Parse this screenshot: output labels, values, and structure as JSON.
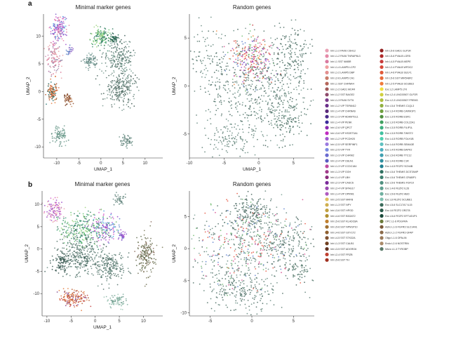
{
  "panels": [
    {
      "label": "a",
      "row": 0
    },
    {
      "label": "b",
      "row": 1
    }
  ],
  "chart_data": [
    {
      "type": "scatter",
      "panel": "a",
      "title": "Minimal marker genes",
      "xlabel": "UMAP_1",
      "ylabel": "UMAP_2",
      "xlim": [
        -13,
        14
      ],
      "ylim": [
        -12,
        14
      ],
      "xticks": [
        -10,
        -5,
        0,
        5,
        10
      ],
      "yticks": [
        -10,
        -5,
        0,
        5,
        10
      ],
      "clusters": [
        {
          "x": -9.5,
          "y": 11.5,
          "sx": 0.9,
          "sy": 1.3,
          "n": 150,
          "colors": [
            "#9b46c9",
            "#d35bc7",
            "#4aa3de",
            "#7b55c7",
            "#e27aa5"
          ]
        },
        {
          "x": -10.5,
          "y": 6,
          "sx": 0.7,
          "sy": 1.4,
          "n": 110,
          "colors": [
            "#e8a0a4",
            "#c98ab1",
            "#8c7a9e",
            "#d66a8c"
          ]
        },
        {
          "x": -7,
          "y": 7.5,
          "sx": 0.4,
          "sy": 0.4,
          "n": 30,
          "colors": [
            "#5c7fc4",
            "#a07ad0"
          ]
        },
        {
          "x": -11,
          "y": 0,
          "sx": 0.6,
          "sy": 0.9,
          "n": 110,
          "colors": [
            "#b0532a",
            "#d4683a",
            "#1f6f6b",
            "#e47b3d"
          ]
        },
        {
          "x": -7.5,
          "y": -1.5,
          "sx": 0.45,
          "sy": 0.6,
          "n": 50,
          "colors": [
            "#8c4a2a",
            "#6e3a1f",
            "#c9895a"
          ]
        },
        {
          "x": 0,
          "y": 10,
          "sx": 1.1,
          "sy": 0.9,
          "n": 140,
          "colors": [
            "#5fc26e",
            "#3e8f6f",
            "#9bd27c",
            "#2f7a5e"
          ]
        },
        {
          "x": -2.5,
          "y": 5.5,
          "sx": 0.8,
          "sy": 0.6,
          "n": 80,
          "colors": [
            "#6a8d88",
            "#5f7f7a",
            "#7aa29b"
          ]
        },
        {
          "x": 4,
          "y": 6,
          "sx": 1.7,
          "sy": 1.8,
          "n": 220,
          "colors": [
            "#5c7c72",
            "#6f9087",
            "#3f5f58",
            "#7fa79a"
          ]
        },
        {
          "x": 4.5,
          "y": 0.5,
          "sx": 1.8,
          "sy": 1.5,
          "n": 240,
          "colors": [
            "#546f67",
            "#6a8a80",
            "#3f5a52",
            "#7b9a90"
          ]
        },
        {
          "x": 3,
          "y": 9.5,
          "sx": 0.5,
          "sy": 0.5,
          "n": 40,
          "colors": [
            "#1f5a4a",
            "#27664f"
          ]
        },
        {
          "x": -9.5,
          "y": -8,
          "sx": 0.8,
          "sy": 0.8,
          "n": 90,
          "colors": [
            "#6d9a8c",
            "#7fae9f",
            "#5a8a7c"
          ]
        },
        {
          "x": 6,
          "y": -9,
          "sx": 0.7,
          "sy": 0.5,
          "n": 60,
          "colors": [
            "#6b8f86",
            "#587a72"
          ]
        }
      ]
    },
    {
      "type": "scatter",
      "panel": "a",
      "title": "Random genes",
      "xlabel": "UMAP_1",
      "ylabel": "UMAP_2",
      "xlim": [
        -10,
        8
      ],
      "ylim": [
        -7.5,
        7.5
      ],
      "xticks": [
        -10,
        -5,
        0,
        5
      ],
      "yticks": [
        -5,
        0,
        5
      ],
      "clusters": [
        {
          "x": -1,
          "y": 3,
          "sx": 1.5,
          "sy": 1.3,
          "n": 260,
          "colors": [
            "#e6553f",
            "#d64b8f",
            "#9b46c9",
            "#f08a3c",
            "#c23a3a",
            "#5a7ecb",
            "#6ab96b"
          ]
        },
        {
          "x": 0.5,
          "y": -0.5,
          "sx": 3.2,
          "sy": 2.6,
          "n": 520,
          "colors": [
            "#4f6f66",
            "#5f8077",
            "#3d5c55",
            "#6a8c83",
            "#7aa094"
          ]
        },
        {
          "x": -6.5,
          "y": 2,
          "sx": 1.8,
          "sy": 2.5,
          "n": 150,
          "colors": [
            "#587a70",
            "#6a8d82",
            "#4a6a61"
          ]
        },
        {
          "x": 5,
          "y": 3.5,
          "sx": 1.6,
          "sy": 1.5,
          "n": 140,
          "colors": [
            "#4b6b62",
            "#5d7f75"
          ]
        },
        {
          "x": -4,
          "y": -5.5,
          "sx": 1.8,
          "sy": 0.8,
          "n": 110,
          "colors": [
            "#5a7c72",
            "#6b8d83"
          ]
        },
        {
          "x": 4,
          "y": -3.5,
          "sx": 1.5,
          "sy": 1.2,
          "n": 110,
          "colors": [
            "#557769",
            "#467064"
          ]
        }
      ]
    },
    {
      "type": "scatter",
      "panel": "b",
      "title": "Minimal marker genes",
      "xlabel": "UMAP_1",
      "ylabel": "UMAP_2",
      "xlim": [
        -11,
        14
      ],
      "ylim": [
        -15,
        13
      ],
      "xticks": [
        -10,
        -5,
        0,
        5,
        10
      ],
      "yticks": [
        -10,
        -5,
        0,
        5,
        10
      ],
      "clusters": [
        {
          "x": 5,
          "y": 11,
          "sx": 0.5,
          "sy": 0.6,
          "n": 40,
          "colors": [
            "#6b8f86",
            "#587a72"
          ]
        },
        {
          "x": -8.5,
          "y": 8.5,
          "sx": 1.1,
          "sy": 1.1,
          "n": 110,
          "colors": [
            "#e8a0a4",
            "#d35bc7",
            "#c98ab1",
            "#9b46c9"
          ]
        },
        {
          "x": -3,
          "y": 4.5,
          "sx": 2.2,
          "sy": 1.8,
          "n": 240,
          "colors": [
            "#5fc26e",
            "#3e8f6f",
            "#9bd27c",
            "#2f7a5e",
            "#44a07a"
          ]
        },
        {
          "x": 2,
          "y": 4.8,
          "sx": 1.6,
          "sy": 1.5,
          "n": 170,
          "colors": [
            "#4aa3de",
            "#9b46c9",
            "#5c7fc4",
            "#d35bc7",
            "#6ab96b"
          ]
        },
        {
          "x": -3,
          "y": -1.5,
          "sx": 2.3,
          "sy": 2.3,
          "n": 320,
          "colors": [
            "#4f6f66",
            "#5f8077",
            "#3d5c55",
            "#6a8c83"
          ]
        },
        {
          "x": 3,
          "y": -4,
          "sx": 1.6,
          "sy": 1.8,
          "n": 200,
          "colors": [
            "#587a70",
            "#4a6a61",
            "#6a8d82"
          ]
        },
        {
          "x": 10.5,
          "y": -1.5,
          "sx": 0.9,
          "sy": 2.3,
          "n": 180,
          "colors": [
            "#7a7a5a",
            "#5a6a4a",
            "#8a6a5a",
            "#6b6b4f"
          ]
        },
        {
          "x": -7,
          "y": -3,
          "sx": 1.0,
          "sy": 1.2,
          "n": 80,
          "colors": [
            "#3f5f58",
            "#2f4f48"
          ]
        },
        {
          "x": -4.5,
          "y": -11,
          "sx": 1.5,
          "sy": 0.9,
          "n": 150,
          "colors": [
            "#c23a3a",
            "#e47b3d",
            "#d4683a",
            "#b0532a",
            "#7a3f8a"
          ]
        },
        {
          "x": 4.5,
          "y": -11.5,
          "sx": 0.9,
          "sy": 0.8,
          "n": 80,
          "colors": [
            "#7fae9f",
            "#6d9a8c",
            "#9cc4b4"
          ]
        },
        {
          "x": 5.5,
          "y": 3,
          "sx": 0.4,
          "sy": 0.5,
          "n": 30,
          "colors": [
            "#7b55c7",
            "#9b46c9"
          ]
        }
      ]
    },
    {
      "type": "scatter",
      "panel": "b",
      "title": "Random genes",
      "xlabel": "",
      "ylabel": "UMAP_2",
      "xlim": [
        -7.5,
        7.5
      ],
      "ylim": [
        -10.5,
        9
      ],
      "xticks": [
        -5,
        0,
        5
      ],
      "yticks": [
        -10,
        -5,
        0,
        5
      ],
      "clusters": [
        {
          "x": 0,
          "y": 5.5,
          "sx": 1.3,
          "sy": 1.3,
          "n": 180,
          "colors": [
            "#4f6f66",
            "#5f8077",
            "#3d5c55"
          ]
        },
        {
          "x": -0.5,
          "y": 0.5,
          "sx": 3.5,
          "sy": 3.2,
          "n": 560,
          "colors": [
            "#4f6f66",
            "#5f8077",
            "#3d5c55",
            "#6a8c83",
            "#7aa094",
            "#d64b8f",
            "#6ab96b",
            "#e6553f",
            "#5a7ecb"
          ]
        },
        {
          "x": 4.5,
          "y": 1,
          "sx": 1.5,
          "sy": 1.6,
          "n": 140,
          "colors": [
            "#4b6b62",
            "#5d7f75"
          ]
        },
        {
          "x": -1.5,
          "y": -6.5,
          "sx": 2.2,
          "sy": 1.7,
          "n": 220,
          "colors": [
            "#587a70",
            "#4a6a61",
            "#6a8d82"
          ]
        },
        {
          "x": 5.5,
          "y": -3.5,
          "sx": 0.8,
          "sy": 0.8,
          "n": 50,
          "colors": [
            "#557769",
            "#467064"
          ]
        }
      ]
    }
  ],
  "legend": [
    {
      "label": "Inh L1-2 PAX6 CDH12",
      "color": "#e8a0b4"
    },
    {
      "label": "Inh L1-2 PAX6 TNFAIP8L3",
      "color": "#e58aa8"
    },
    {
      "label": "Inh L1 SST NMBR",
      "color": "#d97aa0"
    },
    {
      "label": "Inh L1-4 LAMP5 LCP2",
      "color": "#f0a0a0"
    },
    {
      "label": "Inh L1-2 LAMP5 DBP",
      "color": "#e38f8f"
    },
    {
      "label": "Inh L2-6 LAMP5 CA1",
      "color": "#c97c6a"
    },
    {
      "label": "Inh L1 SST CHRNA4",
      "color": "#b5665a"
    },
    {
      "label": "Inh L1-2 GAD1 MC4R",
      "color": "#a05a5a"
    },
    {
      "label": "Inh L1-2 SST BAGE2",
      "color": "#8e4a6a"
    },
    {
      "label": "Inh L1-3 PAX6 SYT6",
      "color": "#7a3b8a"
    },
    {
      "label": "Inh L1-2 VIP TSPAN12",
      "color": "#6a2f8a"
    },
    {
      "label": "Inh L1-4 VIP CHRNA6",
      "color": "#5a2a7a"
    },
    {
      "label": "Inh L1-3 VIP ADAMTSL1",
      "color": "#4a2a8a"
    },
    {
      "label": "Inh L1-4 VIP PENK",
      "color": "#3a2a9a"
    },
    {
      "label": "Inh L2-6 VIP QPCT",
      "color": "#8a2ab0"
    },
    {
      "label": "Inh L3-6 VIP HS3ST3A1",
      "color": "#c02ac0"
    },
    {
      "label": "Inh L1-2 VIP PCDH20",
      "color": "#a05ad0"
    },
    {
      "label": "Inh L2-5 VIP SERPINF1",
      "color": "#9a7ae0"
    },
    {
      "label": "Inh L2-5 VIP TYR",
      "color": "#7a8ae0"
    },
    {
      "label": "Inh L1-3 VIP CHRM2",
      "color": "#6a6ad0"
    },
    {
      "label": "Inh L2-4 VIP CBLN1",
      "color": "#5a5ac0"
    },
    {
      "label": "Inh L1-3 VIP CCDC184",
      "color": "#c04aa0"
    },
    {
      "label": "Inh L1-3 VIP GGH",
      "color": "#a03a8a"
    },
    {
      "label": "Inh L1-4 VIP LBH",
      "color": "#8a2a7a"
    },
    {
      "label": "Inh L2-3 VIP CASC6",
      "color": "#7a2a9a"
    },
    {
      "label": "Inh L2-4 VIP SPAG17",
      "color": "#9a4ab0"
    },
    {
      "label": "Inh L1-4 VIP OPRM1",
      "color": "#b05ac0"
    },
    {
      "label": "Inh L3-5 SST MAFB",
      "color": "#e0c060"
    },
    {
      "label": "Inh L1-3 SST NPY",
      "color": "#d0b050"
    },
    {
      "label": "Inh L3-6 SST HPGD",
      "color": "#c0a040"
    },
    {
      "label": "Inh L4-6 SST B3GAT2",
      "color": "#b09030"
    },
    {
      "label": "Inh L5-6 SST KLHDC8A",
      "color": "#c08030"
    },
    {
      "label": "Inh L5-6 SST NPM1P10",
      "color": "#a07030"
    },
    {
      "label": "Inh L4-6 SST GXYLT2",
      "color": "#906030"
    },
    {
      "label": "Inh L4-5 SST STK32A",
      "color": "#805030"
    },
    {
      "label": "Inh L1-3 SST CALB1",
      "color": "#704020"
    },
    {
      "label": "Inh L3-5 SST ADGRG6",
      "color": "#603020"
    },
    {
      "label": "Inh L2-4 SST FRZB",
      "color": "#c04030"
    },
    {
      "label": "Inh L5-6 SST TH",
      "color": "#a03020"
    },
    {
      "label": "Inh L5-6 GAD1 GLP1R",
      "color": "#902020"
    },
    {
      "label": "Inh L5-6 PVALB LGR5",
      "color": "#b02a2a"
    },
    {
      "label": "Inh L4-5 PVALB MEPE",
      "color": "#c83a3a"
    },
    {
      "label": "Inh L2-4 PVALB WFDC2",
      "color": "#d84a3a"
    },
    {
      "label": "Inh L4-6 PVALB SULF1",
      "color": "#e05a3a"
    },
    {
      "label": "Inh L5-6 SST MIR548F2",
      "color": "#e86a3a"
    },
    {
      "label": "Inh L2-5 PVALB SCUBE3",
      "color": "#f07a3a"
    },
    {
      "label": "Exc L2 LAMP5 LTK",
      "color": "#f0e040"
    },
    {
      "label": "Exc L2-4 LINC00507 GLP2R",
      "color": "#d0d040"
    },
    {
      "label": "Exc L2-3 LINC00507 FREM3",
      "color": "#b0c040"
    },
    {
      "label": "Exc L5-6 THEMIS C1QL3",
      "color": "#90b040"
    },
    {
      "label": "Exc L3-4 RORB CARM1P1",
      "color": "#70a040"
    },
    {
      "label": "Exc L3-5 RORB ESR1",
      "color": "#509040"
    },
    {
      "label": "Exc L3-5 RORB COL22A1",
      "color": "#40a060"
    },
    {
      "label": "Exc L3-5 RORB FILIP1L",
      "color": "#40b080"
    },
    {
      "label": "Exc L3-5 RORB TWIST2",
      "color": "#40c0a0"
    },
    {
      "label": "Exc L4-5 RORB FOLH1B",
      "color": "#50d0b0"
    },
    {
      "label": "Exc L4-6 RORB SEMA3E",
      "color": "#60c0c0"
    },
    {
      "label": "Exc L4-5 RORB DAPK2",
      "color": "#50b0c0"
    },
    {
      "label": "Exc L5-6 RORB TTC12",
      "color": "#40a0b0"
    },
    {
      "label": "Exc L4-6 RORB C1R",
      "color": "#3090a0"
    },
    {
      "label": "Exc L4-5 FEZF2 SCN4B",
      "color": "#208090"
    },
    {
      "label": "Exc L5-6 THEMIS DCSTAMP",
      "color": "#307060"
    },
    {
      "label": "Exc L5-6 THEMIS CRABP1",
      "color": "#408070"
    },
    {
      "label": "Exc L5-6 THEMIS FGF10",
      "color": "#509080"
    },
    {
      "label": "Exc L4-6 FEZF2 IL26",
      "color": "#60a090"
    },
    {
      "label": "Exc L5-6 FEZF2 ABO",
      "color": "#70b0a0"
    },
    {
      "label": "Exc L6 FEZF2 SCUBE1",
      "color": "#80c0b0"
    },
    {
      "label": "Exc L5-6 SLC17A7 IL15",
      "color": "#3a6a5a"
    },
    {
      "label": "Exc L6 FEZF2 OR2T8",
      "color": "#2a5a4a"
    },
    {
      "label": "Exc L5-6 FEZF2 EFTUD1P1",
      "color": "#1a4a3a"
    },
    {
      "label": "OPC L1-6 PDGFRA",
      "color": "#6a7a3a"
    },
    {
      "label": "Astro L1-6 FGFR3 SLC14A1",
      "color": "#7a5a3a"
    },
    {
      "label": "Astro L1-2 FGFR3 GFAP",
      "color": "#8a6a4a"
    },
    {
      "label": "Oligo L1-6 OPALIN",
      "color": "#9a7a5a"
    },
    {
      "label": "Endo L2-6 NOSTRIN",
      "color": "#aa8a6a"
    },
    {
      "label": "Micro L1-3 TYROBP",
      "color": "#5a7a6a"
    }
  ]
}
